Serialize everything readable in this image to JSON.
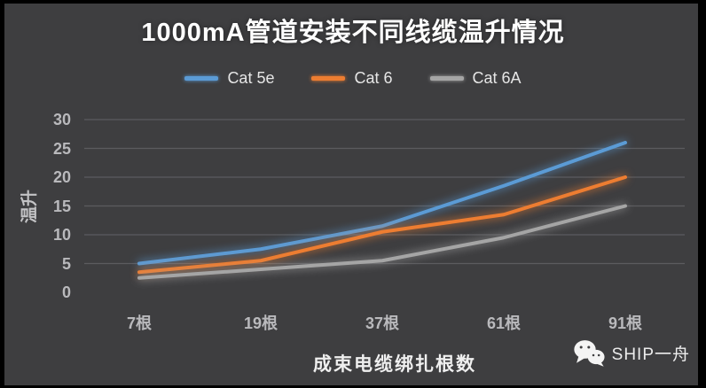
{
  "page": {
    "watermark_brand": "SHIP一舟"
  },
  "chart_data": {
    "type": "line",
    "title": "1000mA管道安装不同线缆温升情况",
    "xlabel": "成束电缆绑扎根数",
    "ylabel": "温升",
    "categories": [
      "7根",
      "19根",
      "37根",
      "61根",
      "91根"
    ],
    "series": [
      {
        "name": "Cat 5e",
        "color": "#5B9BD5",
        "values": [
          5,
          7.5,
          11.5,
          18.5,
          26
        ]
      },
      {
        "name": "Cat 6",
        "color": "#ED7D31",
        "values": [
          3.5,
          5.5,
          10.5,
          13.5,
          20
        ]
      },
      {
        "name": "Cat 6A",
        "color": "#A5A5A5",
        "values": [
          2.5,
          4,
          5.5,
          9.5,
          15
        ]
      }
    ],
    "ylim": [
      0,
      30
    ],
    "yticks": [
      0,
      5,
      10,
      15,
      20,
      25,
      30
    ],
    "grid": true,
    "legend_position": "top",
    "background_color": "#3e3e40",
    "grid_color": "#5c5c5f",
    "tick_text_color": "#b9b9bc",
    "title_color": "#ffffff"
  }
}
